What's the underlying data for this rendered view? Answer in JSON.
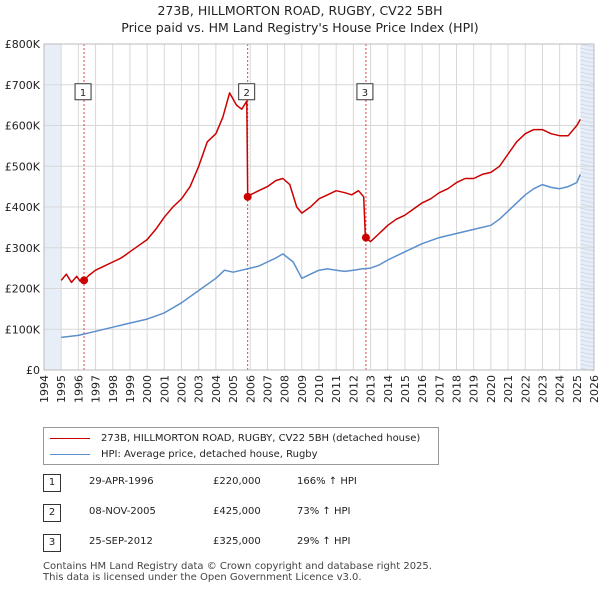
{
  "title_line1": "273B, HILLMORTON ROAD, RUGBY, CV22 5BH",
  "title_line2": "Price paid vs. HM Land Registry's House Price Index (HPI)",
  "legend": {
    "property_label": "273B, HILLMORTON ROAD, RUGBY, CV22 5BH (detached house)",
    "hpi_label": "HPI: Average price, detached house, Rugby"
  },
  "sales": [
    {
      "num": "1",
      "date": "29-APR-1996",
      "price": "£220,000",
      "hpi": "166% ↑ HPI"
    },
    {
      "num": "2",
      "date": "08-NOV-2005",
      "price": "£425,000",
      "hpi": "73% ↑ HPI"
    },
    {
      "num": "3",
      "date": "25-SEP-2012",
      "price": "£325,000",
      "hpi": "29% ↑ HPI"
    }
  ],
  "footer_line1": "Contains HM Land Registry data © Crown copyright and database right 2025.",
  "footer_line2": "This data is licensed under the Open Government Licence v3.0.",
  "chart_data": {
    "type": "line",
    "title": "273B, HILLMORTON ROAD, RUGBY, CV22 5BH — Price paid vs. HM Land Registry's House Price Index (HPI)",
    "xlabel": "",
    "ylabel": "",
    "xlim": [
      1994,
      2026
    ],
    "ylim": [
      0,
      800000
    ],
    "x_ticks": [
      1994,
      1995,
      1996,
      1997,
      1998,
      1999,
      2000,
      2001,
      2002,
      2003,
      2004,
      2005,
      2006,
      2007,
      2008,
      2009,
      2010,
      2011,
      2012,
      2013,
      2014,
      2015,
      2016,
      2017,
      2018,
      2019,
      2020,
      2021,
      2022,
      2023,
      2024,
      2025,
      2026
    ],
    "y_ticks": [
      {
        "value": 0,
        "label": "£0"
      },
      {
        "value": 100000,
        "label": "£100K"
      },
      {
        "value": 200000,
        "label": "£200K"
      },
      {
        "value": 300000,
        "label": "£300K"
      },
      {
        "value": 400000,
        "label": "£400K"
      },
      {
        "value": 500000,
        "label": "£500K"
      },
      {
        "value": 600000,
        "label": "£600K"
      },
      {
        "value": 700000,
        "label": "£700K"
      },
      {
        "value": 800000,
        "label": "£800K"
      }
    ],
    "grid": true,
    "data_range": [
      1995.0,
      2025.2
    ],
    "colors": {
      "property": "#cc0000",
      "hpi": "#5b8fcc",
      "marker": "#cc0000",
      "shade": "#e8eef8",
      "vline": "#dd4444"
    },
    "series": [
      {
        "name": "273B, HILLMORTON ROAD, RUGBY, CV22 5BH (detached house)",
        "x": [
          1995.0,
          1995.3,
          1995.6,
          1995.9,
          1996.1,
          1996.33,
          1996.6,
          1997.0,
          1997.5,
          1998.0,
          1998.5,
          1999.0,
          1999.5,
          2000.0,
          2000.5,
          2001.0,
          2001.5,
          2002.0,
          2002.5,
          2003.0,
          2003.5,
          2004.0,
          2004.4,
          2004.8,
          2005.2,
          2005.5,
          2005.8,
          2005.85,
          2006.0,
          2006.5,
          2007.0,
          2007.5,
          2007.9,
          2008.3,
          2008.7,
          2009.0,
          2009.5,
          2010.0,
          2010.5,
          2011.0,
          2011.5,
          2011.9,
          2012.3,
          2012.6,
          2012.7,
          2013.0,
          2013.5,
          2014.0,
          2014.5,
          2015.0,
          2015.5,
          2016.0,
          2016.5,
          2017.0,
          2017.5,
          2018.0,
          2018.5,
          2019.0,
          2019.5,
          2020.0,
          2020.5,
          2021.0,
          2021.5,
          2022.0,
          2022.5,
          2023.0,
          2023.5,
          2024.0,
          2024.5,
          2025.0,
          2025.2
        ],
        "y": [
          220000,
          235000,
          215000,
          230000,
          218000,
          220000,
          232000,
          245000,
          255000,
          265000,
          275000,
          290000,
          305000,
          320000,
          345000,
          375000,
          400000,
          420000,
          450000,
          500000,
          560000,
          580000,
          620000,
          680000,
          650000,
          640000,
          660000,
          425000,
          430000,
          440000,
          450000,
          465000,
          470000,
          455000,
          400000,
          385000,
          400000,
          420000,
          430000,
          440000,
          435000,
          430000,
          440000,
          425000,
          325000,
          315000,
          335000,
          355000,
          370000,
          380000,
          395000,
          410000,
          420000,
          435000,
          445000,
          460000,
          470000,
          470000,
          480000,
          485000,
          500000,
          530000,
          560000,
          580000,
          590000,
          590000,
          580000,
          575000,
          575000,
          600000,
          615000
        ]
      },
      {
        "name": "HPI: Average price, detached house, Rugby",
        "x": [
          1995.0,
          1996.0,
          1997.0,
          1998.0,
          1999.0,
          2000.0,
          2001.0,
          2002.0,
          2003.0,
          2004.0,
          2004.5,
          2005.0,
          2005.5,
          2006.0,
          2006.5,
          2007.0,
          2007.5,
          2007.9,
          2008.5,
          2009.0,
          2009.5,
          2010.0,
          2010.5,
          2011.0,
          2011.5,
          2012.0,
          2012.5,
          2013.0,
          2013.5,
          2014.0,
          2015.0,
          2016.0,
          2017.0,
          2018.0,
          2019.0,
          2020.0,
          2020.5,
          2021.0,
          2021.5,
          2022.0,
          2022.5,
          2023.0,
          2023.5,
          2024.0,
          2024.5,
          2025.0,
          2025.2
        ],
        "y": [
          80000,
          85000,
          95000,
          105000,
          115000,
          125000,
          140000,
          165000,
          195000,
          225000,
          245000,
          240000,
          245000,
          250000,
          255000,
          265000,
          275000,
          285000,
          265000,
          225000,
          235000,
          245000,
          248000,
          245000,
          242000,
          245000,
          248000,
          250000,
          258000,
          270000,
          290000,
          310000,
          325000,
          335000,
          345000,
          355000,
          370000,
          390000,
          410000,
          430000,
          445000,
          455000,
          448000,
          445000,
          450000,
          460000,
          480000
        ]
      }
    ],
    "sales": [
      {
        "label": "1",
        "x": 1996.33,
        "y": 220000
      },
      {
        "label": "2",
        "x": 2005.85,
        "y": 425000
      },
      {
        "label": "3",
        "x": 2012.73,
        "y": 325000
      }
    ]
  }
}
